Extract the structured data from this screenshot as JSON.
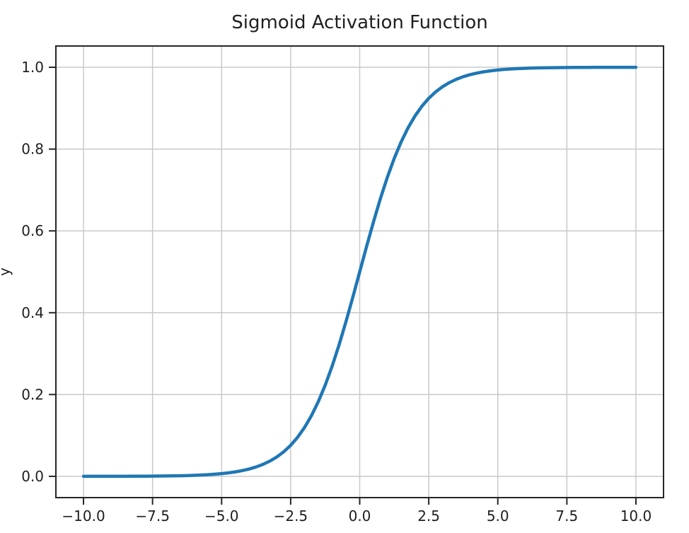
{
  "figure": {
    "title": "Sigmoid Activation Function",
    "background_color": "#ffffff"
  },
  "chart_data": {
    "type": "line",
    "title": "Sigmoid Activation Function",
    "xlabel": "",
    "ylabel": "y",
    "xlim": [
      -11,
      11
    ],
    "ylim": [
      -0.052,
      1.052
    ],
    "grid": true,
    "legend": null,
    "xtick_values": [
      -10,
      -7.5,
      -5,
      -2.5,
      0,
      2.5,
      5,
      7.5,
      10
    ],
    "xtick_labels": [
      "−10.0",
      "−7.5",
      "−5.0",
      "−2.5",
      "0.0",
      "2.5",
      "5.0",
      "7.5",
      "10.0"
    ],
    "ytick_values": [
      0,
      0.2,
      0.4,
      0.6,
      0.8,
      1.0
    ],
    "ytick_labels": [
      "0.0",
      "0.2",
      "0.4",
      "0.6",
      "0.8",
      "1.0"
    ],
    "style": {
      "line_color": "#1f77b4",
      "grid_color": "#c9c9c9",
      "axis_color": "#262626",
      "text_color": "#1f1f1f",
      "plot_background": "#ffffff"
    },
    "series": [
      {
        "name": "sigmoid",
        "color": "#1f77b4",
        "x": [
          -10,
          -9.75,
          -9.5,
          -9.25,
          -9,
          -8.75,
          -8.5,
          -8.25,
          -8,
          -7.75,
          -7.5,
          -7.25,
          -7,
          -6.75,
          -6.5,
          -6.25,
          -6,
          -5.75,
          -5.5,
          -5.25,
          -5,
          -4.75,
          -4.5,
          -4.25,
          -4,
          -3.75,
          -3.5,
          -3.25,
          -3,
          -2.75,
          -2.5,
          -2.25,
          -2,
          -1.75,
          -1.5,
          -1.25,
          -1,
          -0.75,
          -0.5,
          -0.25,
          0,
          0.25,
          0.5,
          0.75,
          1,
          1.25,
          1.5,
          1.75,
          2,
          2.25,
          2.5,
          2.75,
          3,
          3.25,
          3.5,
          3.75,
          4,
          4.25,
          4.5,
          4.75,
          5,
          5.25,
          5.5,
          5.75,
          6,
          6.25,
          6.5,
          6.75,
          7,
          7.25,
          7.5,
          7.75,
          8,
          8.25,
          8.5,
          8.75,
          9,
          9.25,
          9.5,
          9.75,
          10
        ],
        "y": [
          5e-05,
          6e-05,
          7e-05,
          0.0001,
          0.00012,
          0.00016,
          0.0002,
          0.00026,
          0.00034,
          0.00043,
          0.00055,
          0.00071,
          0.00091,
          0.00117,
          0.0015,
          0.00193,
          0.00247,
          0.00317,
          0.00407,
          0.00522,
          0.00669,
          0.00858,
          0.01099,
          0.01407,
          0.01799,
          0.02298,
          0.02931,
          0.03733,
          0.04743,
          0.06011,
          0.07586,
          0.09535,
          0.1192,
          0.14805,
          0.18243,
          0.2227,
          0.26894,
          0.32082,
          0.37754,
          0.43782,
          0.5,
          0.56218,
          0.62246,
          0.67918,
          0.73106,
          0.7773,
          0.81757,
          0.85195,
          0.8808,
          0.90465,
          0.92414,
          0.93989,
          0.95257,
          0.96267,
          0.97069,
          0.97702,
          0.98201,
          0.98593,
          0.98901,
          0.99142,
          0.99331,
          0.99478,
          0.99593,
          0.99683,
          0.99753,
          0.99807,
          0.9985,
          0.99883,
          0.99909,
          0.99929,
          0.99945,
          0.99957,
          0.99966,
          0.99974,
          0.9998,
          0.99984,
          0.99988,
          0.9999,
          0.99993,
          0.99994,
          0.99995
        ]
      }
    ]
  }
}
